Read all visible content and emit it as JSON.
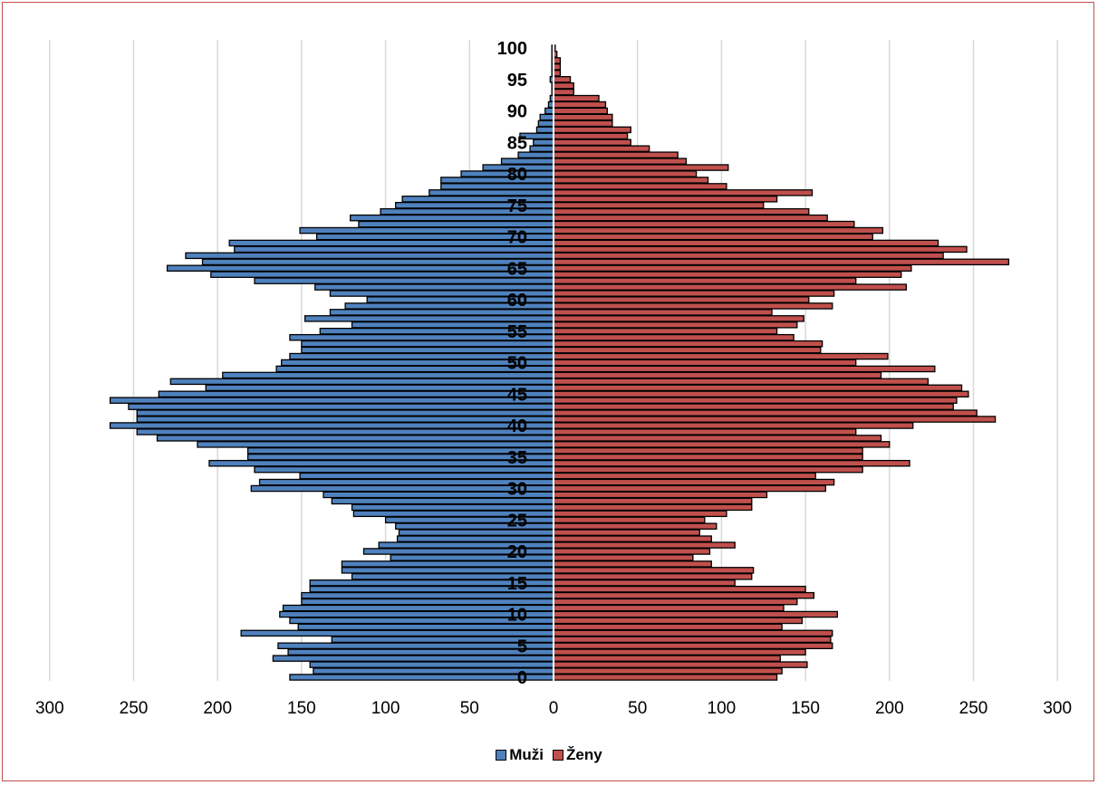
{
  "colors": {
    "male": "#4f81bd",
    "female": "#c0504d",
    "border": "#c0504d",
    "grid": "#d9d9d9",
    "center_line": "#ffffff"
  },
  "legend": {
    "male_label": "Muži",
    "female_label": "Ženy"
  },
  "chart_data": {
    "type": "bar",
    "orientation": "horizontal-diverging",
    "title": "",
    "xlabel": "",
    "ylabel": "",
    "xlim": [
      -300,
      300
    ],
    "x_ticks": [
      -300,
      -250,
      -200,
      -150,
      -100,
      -50,
      0,
      50,
      100,
      150,
      200,
      250,
      300
    ],
    "x_tick_labels": [
      "300",
      "250",
      "200",
      "150",
      "100",
      "50",
      "0",
      "50",
      "100",
      "150",
      "200",
      "250",
      "300"
    ],
    "age_tick_labels": [
      "0",
      "5",
      "10",
      "15",
      "20",
      "25",
      "30",
      "35",
      "40",
      "45",
      "50",
      "55",
      "60",
      "65",
      "70",
      "75",
      "80",
      "85",
      "90",
      "95",
      "100"
    ],
    "ages": [
      0,
      1,
      2,
      3,
      4,
      5,
      6,
      7,
      8,
      9,
      10,
      11,
      12,
      13,
      14,
      15,
      16,
      17,
      18,
      19,
      20,
      21,
      22,
      23,
      24,
      25,
      26,
      27,
      28,
      29,
      30,
      31,
      32,
      33,
      34,
      35,
      36,
      37,
      38,
      39,
      40,
      41,
      42,
      43,
      44,
      45,
      46,
      47,
      48,
      49,
      50,
      51,
      52,
      53,
      54,
      55,
      56,
      57,
      58,
      59,
      60,
      61,
      62,
      63,
      64,
      65,
      66,
      67,
      68,
      69,
      70,
      71,
      72,
      73,
      74,
      75,
      76,
      77,
      78,
      79,
      80,
      81,
      82,
      83,
      84,
      85,
      86,
      87,
      88,
      89,
      90,
      91,
      92,
      93,
      94,
      95,
      96,
      97,
      98,
      99,
      100
    ],
    "grid": true,
    "legend_position": "bottom-center",
    "series": [
      {
        "name": "Muži",
        "values": [
          157,
          143,
          145,
          167,
          158,
          164,
          132,
          186,
          152,
          157,
          163,
          161,
          150,
          150,
          145,
          145,
          120,
          126,
          126,
          97,
          113,
          104,
          93,
          92,
          94,
          100,
          119,
          120,
          132,
          137,
          180,
          175,
          151,
          178,
          205,
          182,
          182,
          212,
          236,
          248,
          264,
          248,
          248,
          253,
          264,
          235,
          207,
          228,
          197,
          165,
          162,
          157,
          150,
          150,
          157,
          139,
          120,
          148,
          133,
          124,
          111,
          133,
          142,
          178,
          204,
          230,
          209,
          219,
          190,
          193,
          141,
          151,
          116,
          121,
          103,
          94,
          90,
          74,
          67,
          67,
          55,
          42,
          31,
          21,
          14,
          12,
          20,
          10,
          9,
          8,
          5,
          3,
          2,
          1,
          1,
          2,
          1,
          1,
          1,
          1,
          1
        ]
      },
      {
        "name": "Ženy",
        "values": [
          133,
          136,
          151,
          135,
          150,
          166,
          165,
          166,
          136,
          148,
          169,
          137,
          145,
          155,
          150,
          108,
          118,
          119,
          94,
          83,
          93,
          108,
          94,
          87,
          97,
          90,
          103,
          118,
          118,
          127,
          162,
          167,
          156,
          184,
          212,
          184,
          184,
          200,
          195,
          180,
          214,
          263,
          252,
          238,
          240,
          247,
          243,
          223,
          195,
          227,
          180,
          199,
          159,
          160,
          143,
          133,
          145,
          149,
          130,
          166,
          152,
          167,
          210,
          180,
          207,
          213,
          271,
          232,
          246,
          229,
          190,
          196,
          179,
          163,
          152,
          125,
          133,
          154,
          103,
          92,
          85,
          104,
          79,
          74,
          57,
          46,
          44,
          46,
          35,
          35,
          32,
          31,
          27,
          12,
          12,
          10,
          4,
          4,
          4,
          2,
          1
        ]
      }
    ]
  }
}
